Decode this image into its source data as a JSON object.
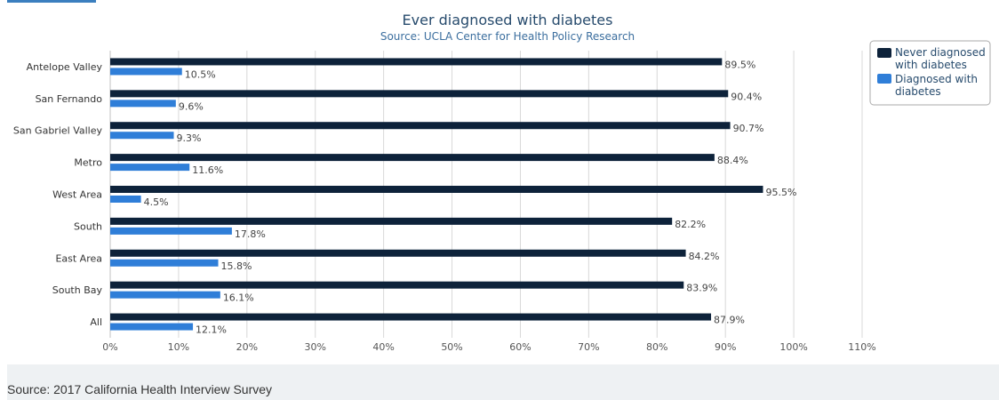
{
  "chart_data": {
    "type": "bar",
    "orientation": "horizontal",
    "title": "Ever diagnosed with diabetes",
    "subtitle": "Source: UCLA Center for Health Policy Research",
    "categories": [
      "Antelope Valley",
      "San Fernando",
      "San Gabriel Valley",
      "Metro",
      "West Area",
      "South",
      "East Area",
      "South Bay",
      "All"
    ],
    "series": [
      {
        "name": "Never diagnosed with diabetes",
        "legend_lines": [
          "Never diagnosed",
          "with diabetes"
        ],
        "color": "#0d223a",
        "values": [
          89.5,
          90.4,
          90.7,
          88.4,
          95.5,
          82.2,
          84.2,
          83.9,
          87.9
        ],
        "labels": [
          "89.5%",
          "90.4%",
          "90.7%",
          "88.4%",
          "95.5%",
          "82.2%",
          "84.2%",
          "83.9%",
          "87.9%"
        ]
      },
      {
        "name": "Diagnosed with diabetes",
        "legend_lines": [
          "Diagnosed with",
          "diabetes"
        ],
        "color": "#2f7ed8",
        "values": [
          10.5,
          9.6,
          9.3,
          11.6,
          4.5,
          17.8,
          15.8,
          16.1,
          12.1
        ],
        "labels": [
          "10.5%",
          "9.6%",
          "9.3%",
          "11.6%",
          "4.5%",
          "17.8%",
          "15.8%",
          "16.1%",
          "12.1%"
        ]
      }
    ],
    "x_ticks": [
      0,
      10,
      20,
      30,
      40,
      50,
      60,
      70,
      80,
      90,
      100,
      110
    ],
    "x_tick_labels": [
      "0%",
      "10%",
      "20%",
      "30%",
      "40%",
      "50%",
      "60%",
      "70%",
      "80%",
      "90%",
      "100%",
      "110%"
    ],
    "xlim": [
      0,
      110
    ],
    "grid": true,
    "legend_position": "top-right"
  },
  "footer": {
    "source": "Source: 2017 California Health Interview Survey"
  }
}
